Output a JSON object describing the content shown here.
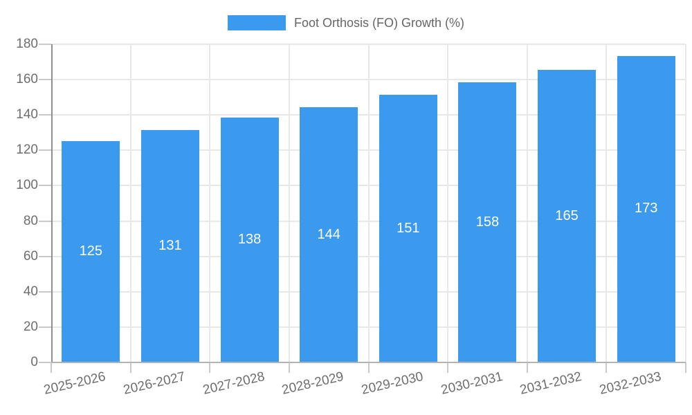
{
  "chart_data": {
    "type": "bar",
    "title": "",
    "xlabel": "",
    "ylabel": "",
    "categories": [
      "2025-2026",
      "2026-2027",
      "2027-2028",
      "2028-2029",
      "2029-2030",
      "2030-2031",
      "2031-2032",
      "2032-2033"
    ],
    "series": [
      {
        "name": "Foot Orthosis (FO) Growth (%)",
        "values": [
          125,
          131,
          138,
          144,
          151,
          158,
          165,
          173
        ]
      }
    ],
    "ylim": [
      0,
      180
    ],
    "ytick_step": 20,
    "yticks": [
      0,
      20,
      40,
      60,
      80,
      100,
      120,
      140,
      160,
      180
    ],
    "grid": true,
    "legend_position": "top",
    "value_labels": "centered-inside-bars",
    "colors": {
      "bar": "#3B9AEE",
      "grid": "#E8E8E8",
      "y_axis_line": "#8F8F8F",
      "x_axis_line": "#B3B3B3",
      "tick_mark": "#C9C9C9",
      "tick_label": "#6E6E6E",
      "value_label": "#FFFFFF",
      "legend_text": "#666666",
      "background": "#FFFFFF"
    }
  }
}
